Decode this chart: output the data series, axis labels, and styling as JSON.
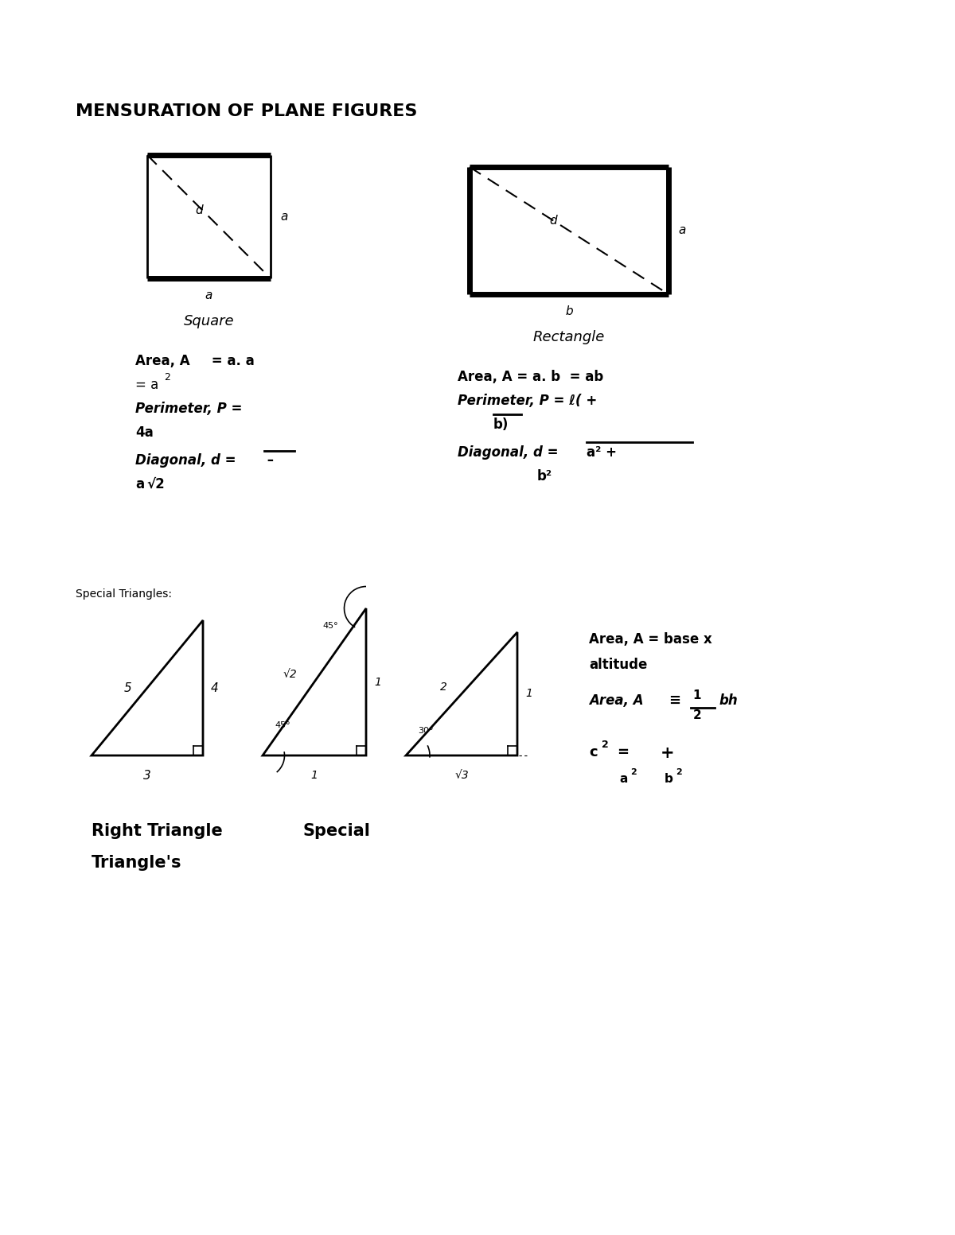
{
  "title": "MENSURATION OF PLANE FIGURES",
  "bg_color": "#ffffff",
  "square_label": "Square",
  "rectangle_label": "Rectangle",
  "special_triangles_label": "Special Triangles:",
  "right_triangle_label": "Right Triangle",
  "special_label": "Special",
  "triangles_label": "Triangle's",
  "fig_width": 12.0,
  "fig_height": 15.53,
  "dpi": 100
}
